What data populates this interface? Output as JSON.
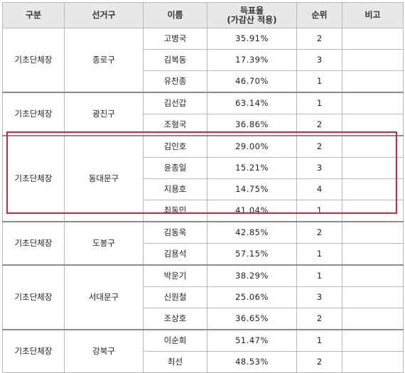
{
  "headers": {
    "category": "구분",
    "district": "선거구",
    "name": "이름",
    "vote_rate_line1": "득표율",
    "vote_rate_line2": "(가감산 적용)",
    "rank": "순위",
    "note": "비고"
  },
  "groups": [
    {
      "category": "기초단체장",
      "district": "종로구",
      "rows": [
        {
          "name": "고병국",
          "rate": "35.91%",
          "rank": "2",
          "note": ""
        },
        {
          "name": "김복동",
          "rate": "17.39%",
          "rank": "3",
          "note": ""
        },
        {
          "name": "유찬종",
          "rate": "46.70%",
          "rank": "1",
          "note": ""
        }
      ]
    },
    {
      "category": "기초단체장",
      "district": "광진구",
      "rows": [
        {
          "name": "김선갑",
          "rate": "63.14%",
          "rank": "1",
          "note": ""
        },
        {
          "name": "조형국",
          "rate": "36.86%",
          "rank": "2",
          "note": ""
        }
      ]
    },
    {
      "category": "기초단체장",
      "district": "동대문구",
      "rows": [
        {
          "name": "김인호",
          "rate": "29.00%",
          "rank": "2",
          "note": ""
        },
        {
          "name": "윤종일",
          "rate": "15.21%",
          "rank": "3",
          "note": ""
        },
        {
          "name": "지용호",
          "rate": "14.75%",
          "rank": "4",
          "note": ""
        },
        {
          "name": "최동민",
          "rate": "41.04%",
          "rank": "1",
          "note": ""
        }
      ]
    },
    {
      "category": "기초단체장",
      "district": "도봉구",
      "rows": [
        {
          "name": "김동욱",
          "rate": "42.85%",
          "rank": "2",
          "note": ""
        },
        {
          "name": "김용석",
          "rate": "57.15%",
          "rank": "1",
          "note": ""
        }
      ]
    },
    {
      "category": "기초단체장",
      "district": "서대문구",
      "rows": [
        {
          "name": "박운기",
          "rate": "38.29%",
          "rank": "1",
          "note": ""
        },
        {
          "name": "신원철",
          "rate": "25.06%",
          "rank": "3",
          "note": ""
        },
        {
          "name": "조상호",
          "rate": "36.65%",
          "rank": "2",
          "note": ""
        }
      ]
    },
    {
      "category": "기초단체장",
      "district": "강북구",
      "rows": [
        {
          "name": "이순희",
          "rate": "51.47%",
          "rank": "1",
          "note": ""
        },
        {
          "name": "최선",
          "rate": "48.53%",
          "rank": "2",
          "note": ""
        }
      ]
    }
  ],
  "highlight_color": "#d4243b"
}
